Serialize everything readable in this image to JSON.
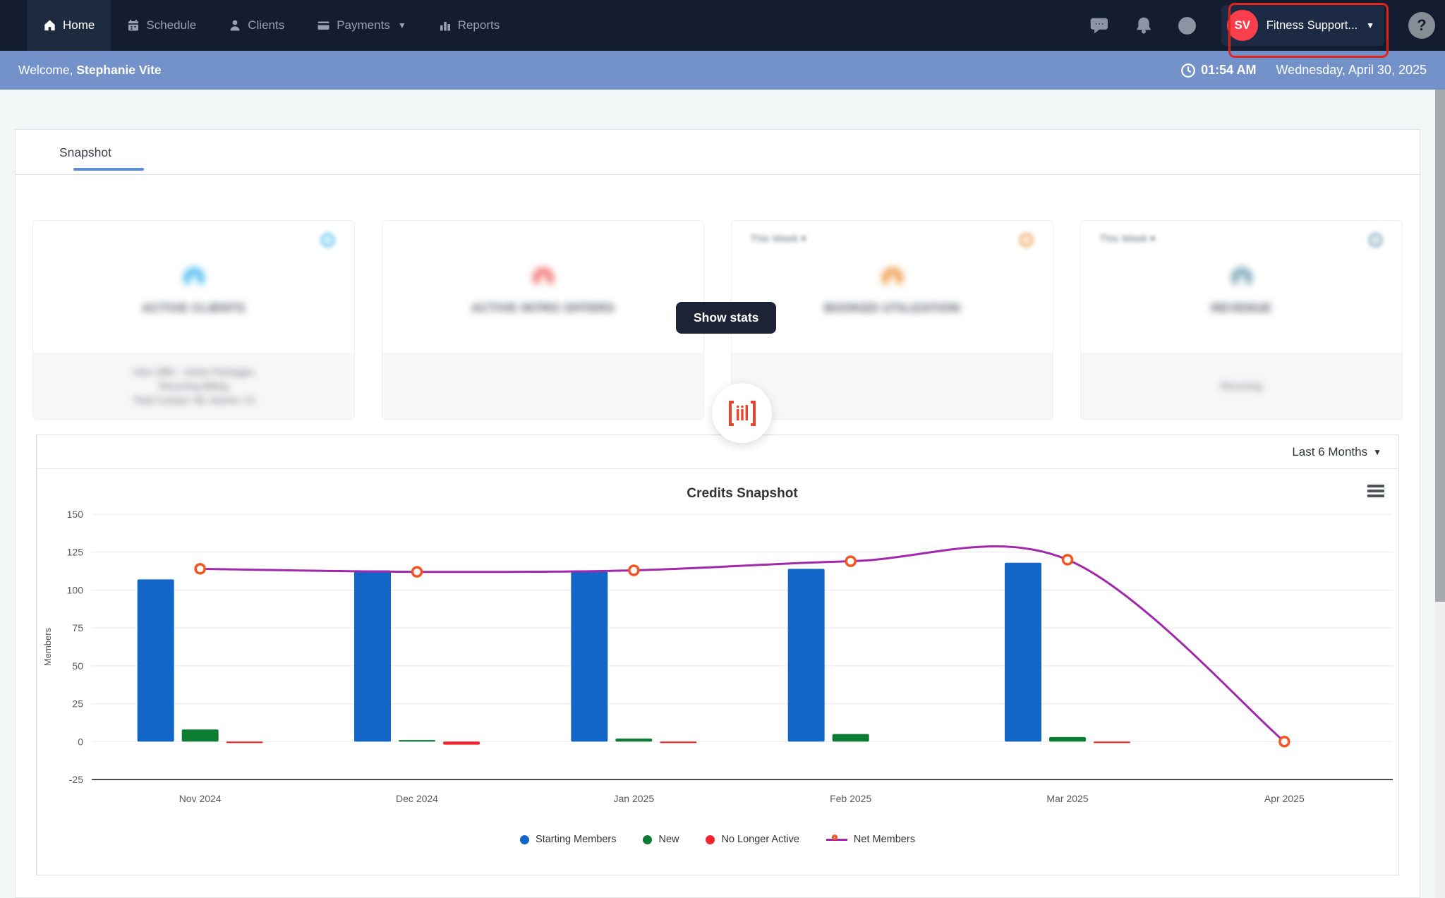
{
  "nav": {
    "items": [
      {
        "label": "Home",
        "icon": "home-icon",
        "active": true,
        "has_caret": false
      },
      {
        "label": "Schedule",
        "icon": "calendar-icon",
        "active": false,
        "has_caret": false
      },
      {
        "label": "Clients",
        "icon": "person-icon",
        "active": false,
        "has_caret": false
      },
      {
        "label": "Payments",
        "icon": "credit-card-icon",
        "active": false,
        "has_caret": true
      },
      {
        "label": "Reports",
        "icon": "bar-chart-icon",
        "active": false,
        "has_caret": false
      }
    ],
    "user": {
      "initials": "SV",
      "name": "Fitness Support...",
      "highlighted": true,
      "highlight_color": "#df241c",
      "avatar_color": "#fb3e4d"
    },
    "help_label": "?"
  },
  "welcome_bar": {
    "greeting": "Welcome,",
    "user_name": "Stephanie Vite",
    "time": "01:54 AM",
    "date": "Wednesday, April 30, 2025",
    "background": "#7392ca"
  },
  "tabs": {
    "active_label": "Snapshot",
    "underline_color": "#5d8ed2"
  },
  "stat_cards": [
    {
      "title": "ACTIVE CLIENTS",
      "accent": "#55c0f0",
      "period": "",
      "has_gear": true,
      "footer_lines": [
        "Intro Offer - Active Packages",
        "Recurring Billing",
        "Total Contact: 96, Alumni: 13"
      ]
    },
    {
      "title": "ACTIVE INTRO OFFERS",
      "accent": "#f47a7a",
      "period": "",
      "has_gear": false,
      "footer_lines": [
        "",
        "",
        ""
      ]
    },
    {
      "title": "BOOKED UTILIZATION",
      "accent": "#f0a054",
      "period": "This Week",
      "has_gear": true,
      "footer_lines": [
        "",
        "",
        ""
      ]
    },
    {
      "title": "REVENUE",
      "accent": "#7fa9ba",
      "period": "This Week",
      "has_gear": true,
      "footer_lines": [
        "Recurring",
        "",
        ""
      ]
    }
  ],
  "overlay": {
    "show_stats_label": "Show stats",
    "scan_icon_color": "#e8452e"
  },
  "chart_card": {
    "range_label": "Last 6 Months"
  },
  "chart_data": {
    "type": "bar",
    "title": "Credits Snapshot",
    "xlabel": "",
    "ylabel": "Members",
    "categories": [
      "Nov 2024",
      "Dec 2024",
      "Jan 2025",
      "Feb 2025",
      "Mar 2025",
      "Apr 2025"
    ],
    "series": [
      {
        "name": "Starting Members",
        "type": "bar",
        "color": "#1266c8",
        "values": [
          107,
          113,
          112,
          114,
          118,
          null
        ]
      },
      {
        "name": "New",
        "type": "bar",
        "color": "#0c7c33",
        "values": [
          8,
          1,
          2,
          5,
          3,
          null
        ]
      },
      {
        "name": "No Longer Active",
        "type": "bar",
        "color": "#f1232b",
        "values": [
          -1,
          -2,
          -1,
          0,
          -1,
          null
        ]
      },
      {
        "name": "Net Members",
        "type": "line",
        "color": "#a128ab",
        "marker_color": "#f2551f",
        "values": [
          114,
          112,
          113,
          119,
          120,
          0
        ]
      }
    ],
    "ylim": [
      -25,
      150
    ],
    "yticks": [
      150,
      125,
      100,
      75,
      50,
      25,
      0,
      -25
    ],
    "grid": true,
    "legend_position": "bottom"
  }
}
